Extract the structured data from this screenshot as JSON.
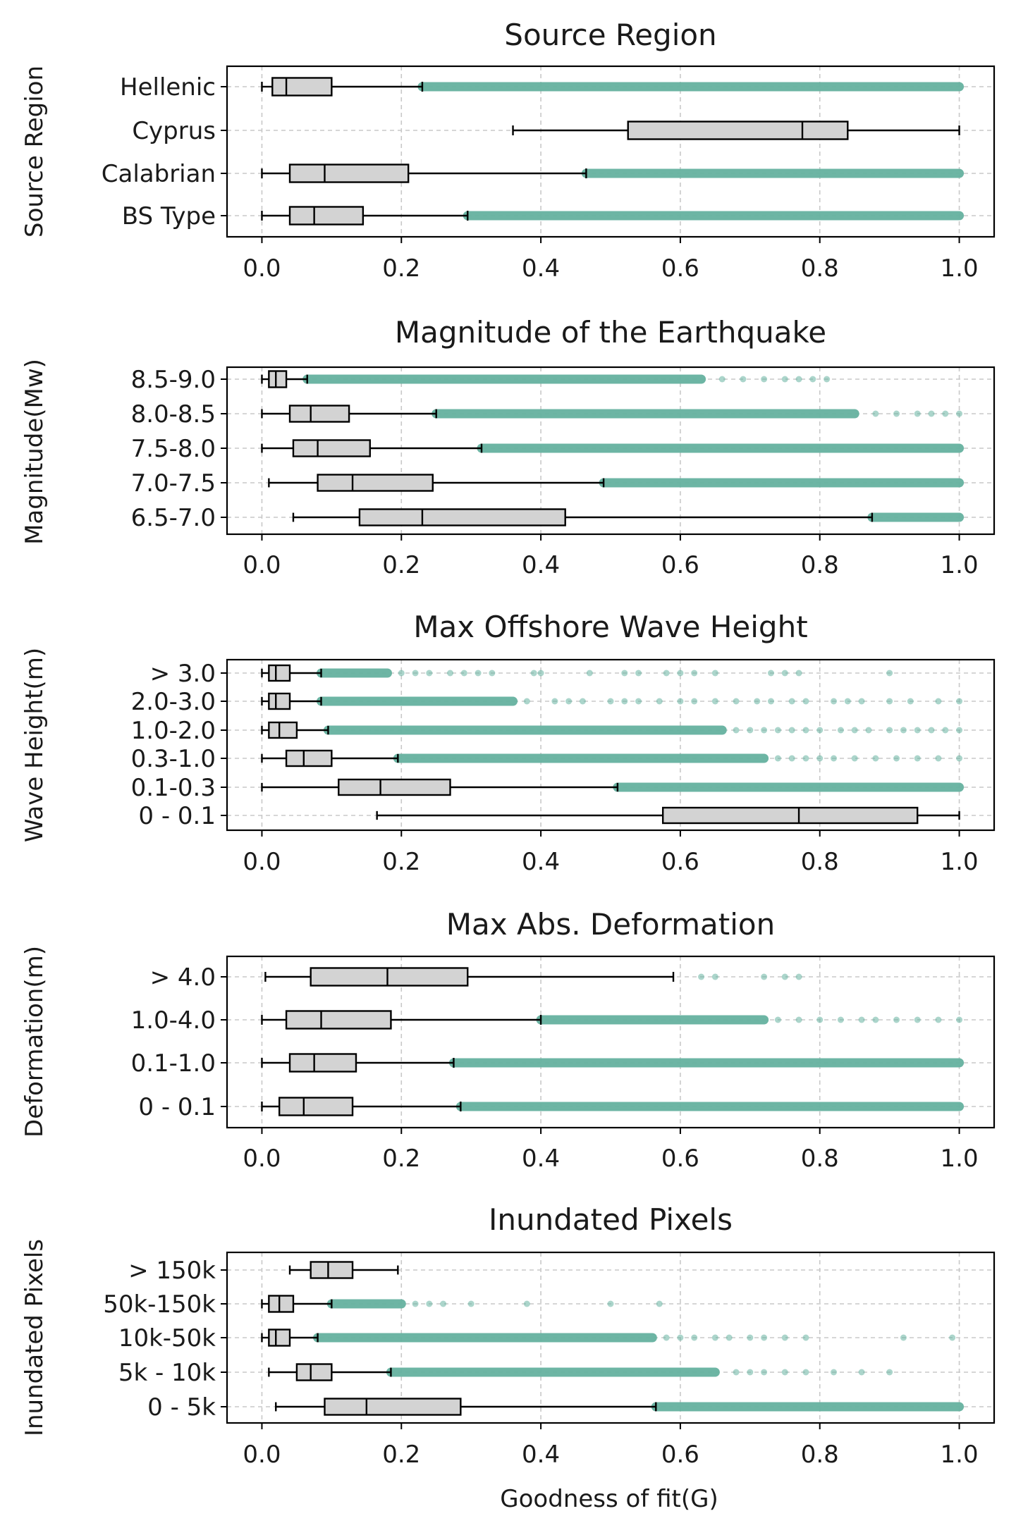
{
  "xlabel": "Goodness of fit(G)",
  "colors": {
    "box_fill": "#d3d3d3",
    "outlier": "#66b2a0",
    "grid": "#c8c8c8",
    "line": "#000000"
  },
  "chart_data": [
    {
      "type": "boxplot",
      "title": "Source Region",
      "ylabel": "Source Region",
      "xlim": [
        -0.05,
        1.05
      ],
      "xticks": [
        "0.0",
        "0.2",
        "0.4",
        "0.6",
        "0.8",
        "1.0"
      ],
      "grid": true,
      "categories": [
        {
          "label": "Hellenic",
          "whisker_low": 0.0,
          "q1": 0.015,
          "median": 0.035,
          "q3": 0.1,
          "whisker_high": 0.23,
          "outlier_dense": [
            0.23,
            1.0
          ],
          "outlier_sparse": []
        },
        {
          "label": "Cyprus",
          "whisker_low": 0.36,
          "q1": 0.525,
          "median": 0.775,
          "q3": 0.84,
          "whisker_high": 1.0,
          "outlier_dense": null,
          "outlier_sparse": []
        },
        {
          "label": "Calabrian",
          "whisker_low": 0.0,
          "q1": 0.04,
          "median": 0.09,
          "q3": 0.21,
          "whisker_high": 0.465,
          "outlier_dense": [
            0.465,
            1.0
          ],
          "outlier_sparse": []
        },
        {
          "label": "BS Type",
          "whisker_low": 0.0,
          "q1": 0.04,
          "median": 0.075,
          "q3": 0.145,
          "whisker_high": 0.295,
          "outlier_dense": [
            0.295,
            1.0
          ],
          "outlier_sparse": []
        }
      ]
    },
    {
      "type": "boxplot",
      "title": "Magnitude of the Earthquake",
      "ylabel": "Magnitude(Mw)",
      "xlim": [
        -0.05,
        1.05
      ],
      "xticks": [
        "0.0",
        "0.2",
        "0.4",
        "0.6",
        "0.8",
        "1.0"
      ],
      "grid": true,
      "categories": [
        {
          "label": "8.5-9.0",
          "whisker_low": 0.0,
          "q1": 0.01,
          "median": 0.02,
          "q3": 0.035,
          "whisker_high": 0.065,
          "outlier_dense": [
            0.065,
            0.63
          ],
          "outlier_sparse": [
            0.66,
            0.69,
            0.72,
            0.75,
            0.77,
            0.79,
            0.81
          ]
        },
        {
          "label": "8.0-8.5",
          "whisker_low": 0.0,
          "q1": 0.04,
          "median": 0.07,
          "q3": 0.125,
          "whisker_high": 0.25,
          "outlier_dense": [
            0.25,
            0.85
          ],
          "outlier_sparse": [
            0.88,
            0.91,
            0.94,
            0.96,
            0.98,
            1.0
          ]
        },
        {
          "label": "7.5-8.0",
          "whisker_low": 0.0,
          "q1": 0.045,
          "median": 0.08,
          "q3": 0.155,
          "whisker_high": 0.315,
          "outlier_dense": [
            0.315,
            1.0
          ],
          "outlier_sparse": []
        },
        {
          "label": "7.0-7.5",
          "whisker_low": 0.01,
          "q1": 0.08,
          "median": 0.13,
          "q3": 0.245,
          "whisker_high": 0.49,
          "outlier_dense": [
            0.49,
            1.0
          ],
          "outlier_sparse": []
        },
        {
          "label": "6.5-7.0",
          "whisker_low": 0.045,
          "q1": 0.14,
          "median": 0.23,
          "q3": 0.435,
          "whisker_high": 0.875,
          "outlier_dense": [
            0.875,
            1.0
          ],
          "outlier_sparse": []
        }
      ]
    },
    {
      "type": "boxplot",
      "title": "Max Offshore Wave Height",
      "ylabel": "Wave Height(m)",
      "xlim": [
        -0.05,
        1.05
      ],
      "xticks": [
        "0.0",
        "0.2",
        "0.4",
        "0.6",
        "0.8",
        "1.0"
      ],
      "grid": true,
      "categories": [
        {
          "label": "> 3.0",
          "whisker_low": 0.0,
          "q1": 0.01,
          "median": 0.02,
          "q3": 0.04,
          "whisker_high": 0.085,
          "outlier_dense": [
            0.085,
            0.18
          ],
          "outlier_sparse": [
            0.2,
            0.22,
            0.24,
            0.27,
            0.29,
            0.31,
            0.33,
            0.39,
            0.4,
            0.47,
            0.52,
            0.54,
            0.58,
            0.6,
            0.62,
            0.65,
            0.73,
            0.75,
            0.77,
            0.9
          ]
        },
        {
          "label": "2.0-3.0",
          "whisker_low": 0.0,
          "q1": 0.01,
          "median": 0.02,
          "q3": 0.04,
          "whisker_high": 0.085,
          "outlier_dense": [
            0.085,
            0.36
          ],
          "outlier_sparse": [
            0.38,
            0.42,
            0.44,
            0.46,
            0.5,
            0.52,
            0.54,
            0.57,
            0.6,
            0.62,
            0.65,
            0.68,
            0.71,
            0.73,
            0.76,
            0.78,
            0.82,
            0.84,
            0.86,
            0.9,
            0.93,
            0.97,
            1.0
          ]
        },
        {
          "label": "1.0-2.0",
          "whisker_low": 0.0,
          "q1": 0.01,
          "median": 0.025,
          "q3": 0.05,
          "whisker_high": 0.095,
          "outlier_dense": [
            0.095,
            0.66
          ],
          "outlier_sparse": [
            0.68,
            0.7,
            0.72,
            0.74,
            0.76,
            0.78,
            0.8,
            0.83,
            0.85,
            0.87,
            0.9,
            0.92,
            0.94,
            0.96,
            0.98,
            1.0
          ]
        },
        {
          "label": "0.3-1.0",
          "whisker_low": 0.0,
          "q1": 0.035,
          "median": 0.06,
          "q3": 0.1,
          "whisker_high": 0.195,
          "outlier_dense": [
            0.195,
            0.72
          ],
          "outlier_sparse": [
            0.74,
            0.76,
            0.78,
            0.8,
            0.82,
            0.85,
            0.88,
            0.91,
            0.94,
            0.97,
            1.0
          ]
        },
        {
          "label": "0.1-0.3",
          "whisker_low": 0.0,
          "q1": 0.11,
          "median": 0.17,
          "q3": 0.27,
          "whisker_high": 0.51,
          "outlier_dense": [
            0.51,
            1.0
          ],
          "outlier_sparse": []
        },
        {
          "label": "0 - 0.1",
          "whisker_low": 0.165,
          "q1": 0.575,
          "median": 0.77,
          "q3": 0.94,
          "whisker_high": 1.0,
          "outlier_dense": null,
          "outlier_sparse": []
        }
      ]
    },
    {
      "type": "boxplot",
      "title": "Max Abs. Deformation",
      "ylabel": "Deformation(m)",
      "xlim": [
        -0.05,
        1.05
      ],
      "xticks": [
        "0.0",
        "0.2",
        "0.4",
        "0.6",
        "0.8",
        "1.0"
      ],
      "grid": true,
      "categories": [
        {
          "label": "> 4.0",
          "whisker_low": 0.005,
          "q1": 0.07,
          "median": 0.18,
          "q3": 0.295,
          "whisker_high": 0.59,
          "outlier_dense": null,
          "outlier_sparse": [
            0.63,
            0.65,
            0.72,
            0.75,
            0.77
          ]
        },
        {
          "label": "1.0-4.0",
          "whisker_low": 0.0,
          "q1": 0.035,
          "median": 0.085,
          "q3": 0.185,
          "whisker_high": 0.4,
          "outlier_dense": [
            0.4,
            0.72
          ],
          "outlier_sparse": [
            0.74,
            0.77,
            0.8,
            0.83,
            0.86,
            0.88,
            0.91,
            0.94,
            0.97,
            1.0
          ]
        },
        {
          "label": "0.1-1.0",
          "whisker_low": 0.0,
          "q1": 0.04,
          "median": 0.075,
          "q3": 0.135,
          "whisker_high": 0.275,
          "outlier_dense": [
            0.275,
            1.0
          ],
          "outlier_sparse": []
        },
        {
          "label": "0 - 0.1",
          "whisker_low": 0.0,
          "q1": 0.025,
          "median": 0.06,
          "q3": 0.13,
          "whisker_high": 0.285,
          "outlier_dense": [
            0.285,
            1.0
          ],
          "outlier_sparse": []
        }
      ]
    },
    {
      "type": "boxplot",
      "title": "Inundated Pixels",
      "ylabel": "Inundated Pixels",
      "xlim": [
        -0.05,
        1.05
      ],
      "xticks": [
        "0.0",
        "0.2",
        "0.4",
        "0.6",
        "0.8",
        "1.0"
      ],
      "grid": true,
      "categories": [
        {
          "label": "> 150k",
          "whisker_low": 0.04,
          "q1": 0.07,
          "median": 0.095,
          "q3": 0.13,
          "whisker_high": 0.195,
          "outlier_dense": null,
          "outlier_sparse": []
        },
        {
          "label": "50k-150k",
          "whisker_low": 0.0,
          "q1": 0.01,
          "median": 0.025,
          "q3": 0.045,
          "whisker_high": 0.1,
          "outlier_dense": [
            0.1,
            0.2
          ],
          "outlier_sparse": [
            0.22,
            0.24,
            0.26,
            0.3,
            0.38,
            0.5,
            0.57
          ]
        },
        {
          "label": "10k-50k",
          "whisker_low": 0.0,
          "q1": 0.01,
          "median": 0.02,
          "q3": 0.04,
          "whisker_high": 0.08,
          "outlier_dense": [
            0.08,
            0.56
          ],
          "outlier_sparse": [
            0.58,
            0.6,
            0.62,
            0.65,
            0.67,
            0.7,
            0.72,
            0.75,
            0.78,
            0.92,
            0.99
          ]
        },
        {
          "label": "5k - 10k",
          "whisker_low": 0.01,
          "q1": 0.05,
          "median": 0.07,
          "q3": 0.1,
          "whisker_high": 0.185,
          "outlier_dense": [
            0.185,
            0.65
          ],
          "outlier_sparse": [
            0.68,
            0.7,
            0.72,
            0.75,
            0.78,
            0.82,
            0.86,
            0.9
          ]
        },
        {
          "label": "0 - 5k",
          "whisker_low": 0.02,
          "q1": 0.09,
          "median": 0.15,
          "q3": 0.285,
          "whisker_high": 0.565,
          "outlier_dense": [
            0.565,
            1.0
          ],
          "outlier_sparse": []
        }
      ]
    }
  ]
}
